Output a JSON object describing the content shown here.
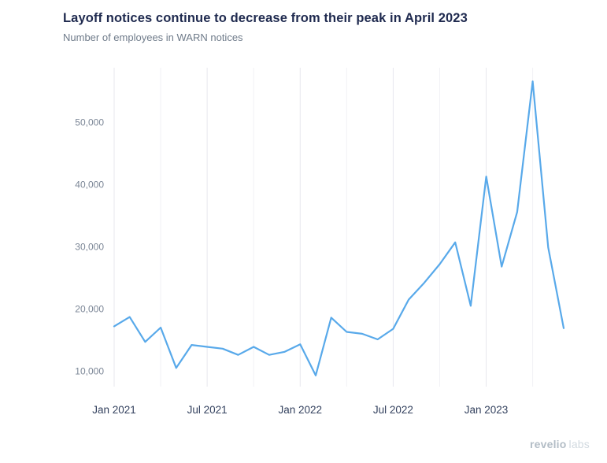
{
  "header": {
    "title": "Layoff notices continue to decrease from their peak in April 2023",
    "subtitle": "Number of employees in WARN notices"
  },
  "watermark": {
    "brand": "revelio",
    "suffix": "labs"
  },
  "colors": {
    "line": "#58a9ea",
    "grid_major": "#e7e7ee",
    "grid_minor": "#f1f1f5",
    "title": "#1f2a4f",
    "subtitle": "#6f7b8a",
    "y_tick": "#7b8696",
    "x_tick": "#33415e"
  },
  "chart_data": {
    "type": "line",
    "title": "Layoff notices continue to decrease from their peak in April 2023",
    "subtitle": "Number of employees in WARN notices",
    "xlabel": "",
    "ylabel": "Number of employees in WARN notices",
    "x": [
      "Jan 2021",
      "Feb 2021",
      "Mar 2021",
      "Apr 2021",
      "May 2021",
      "Jun 2021",
      "Jul 2021",
      "Aug 2021",
      "Sep 2021",
      "Oct 2021",
      "Nov 2021",
      "Dec 2021",
      "Jan 2022",
      "Feb 2022",
      "Mar 2022",
      "Apr 2022",
      "May 2022",
      "Jun 2022",
      "Jul 2022",
      "Aug 2022",
      "Sep 2022",
      "Oct 2022",
      "Nov 2022",
      "Dec 2022",
      "Jan 2023",
      "Feb 2023",
      "Mar 2023",
      "Apr 2023",
      "May 2023",
      "Jun 2023"
    ],
    "values": [
      17200,
      18700,
      14700,
      17000,
      10500,
      14200,
      13900,
      13600,
      12600,
      13900,
      12600,
      13100,
      14300,
      9300,
      18600,
      16300,
      16000,
      15100,
      16800,
      21500,
      24200,
      27200,
      30700,
      20500,
      41300,
      26800,
      35600,
      56600,
      29900,
      16900
    ],
    "x_tick_labels": [
      "Jan 2021",
      "Jul 2021",
      "Jan 2022",
      "Jul 2022",
      "Jan 2023"
    ],
    "x_tick_indices": [
      0,
      6,
      12,
      18,
      24
    ],
    "minor_grid_step_months": 3,
    "y_ticks": [
      10000,
      20000,
      30000,
      40000,
      50000
    ],
    "y_tick_labels": [
      "10,000",
      "20,000",
      "30,000",
      "40,000",
      "50,000"
    ],
    "ylim": [
      7500,
      58800
    ],
    "grid": "vertical-only",
    "legend": "none"
  }
}
